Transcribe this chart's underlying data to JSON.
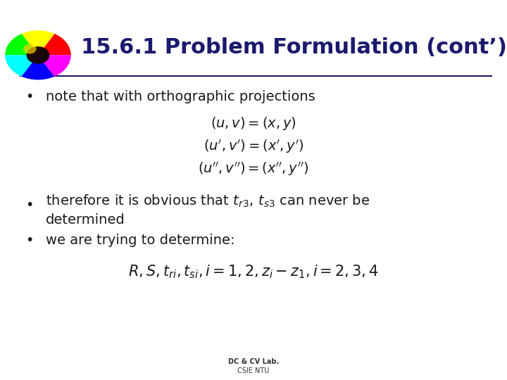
{
  "title": "15.6.1 Problem Formulation (cont’)",
  "title_color": "#1a1a6e",
  "background_color": "#ffffff",
  "line_color": "#1a1a6e",
  "bullet_color": "#1a1a1a",
  "bullet1": "note that with orthographic projections",
  "bullet3": "we are trying to determine:",
  "footer1": "DC & CV Lab.",
  "footer2": "CSIE NTU",
  "text_color": "#1a1a1a",
  "math_color": "#1a1a1a"
}
